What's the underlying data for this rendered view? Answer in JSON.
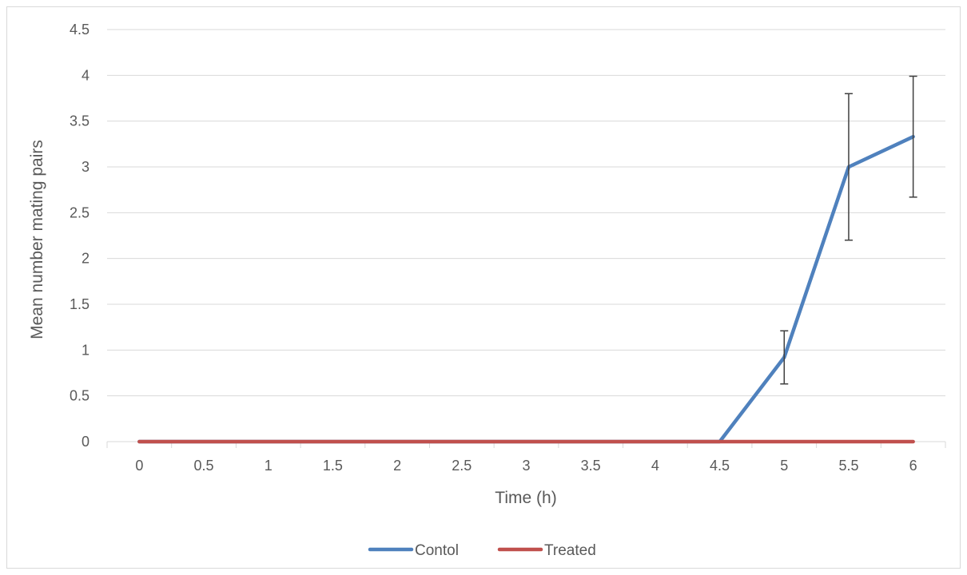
{
  "chart_data": {
    "type": "line",
    "title": "",
    "xlabel": "Time (h)",
    "ylabel": "Mean number mating pairs",
    "x": [
      0,
      0.5,
      1,
      1.5,
      2,
      2.5,
      3,
      3.5,
      4,
      4.5,
      5,
      5.5,
      6
    ],
    "x_tick_labels": [
      "0",
      "0.5",
      "1",
      "1.5",
      "2",
      "2.5",
      "3",
      "3.5",
      "4",
      "4.5",
      "5",
      "5.5",
      "6"
    ],
    "y_ticks": [
      0,
      0.5,
      1,
      1.5,
      2,
      2.5,
      3,
      3.5,
      4,
      4.5
    ],
    "y_tick_labels": [
      "0",
      "0.5",
      "1",
      "1.5",
      "2",
      "2.5",
      "3",
      "3.5",
      "4",
      "4.5"
    ],
    "ylim": [
      0,
      4.5
    ],
    "grid": "horizontal",
    "legend_position": "bottom",
    "series": [
      {
        "name": "Contol",
        "color": "#4f81bd",
        "values": [
          0,
          0,
          0,
          0,
          0,
          0,
          0,
          0,
          0,
          0,
          0.92,
          3.0,
          3.33
        ],
        "error": [
          null,
          null,
          null,
          null,
          null,
          null,
          null,
          null,
          null,
          null,
          0.29,
          0.8,
          0.66
        ]
      },
      {
        "name": "Treated",
        "color": "#c0504d",
        "values": [
          0,
          0,
          0,
          0,
          0,
          0,
          0,
          0,
          0,
          0,
          0,
          0,
          0
        ]
      }
    ]
  }
}
